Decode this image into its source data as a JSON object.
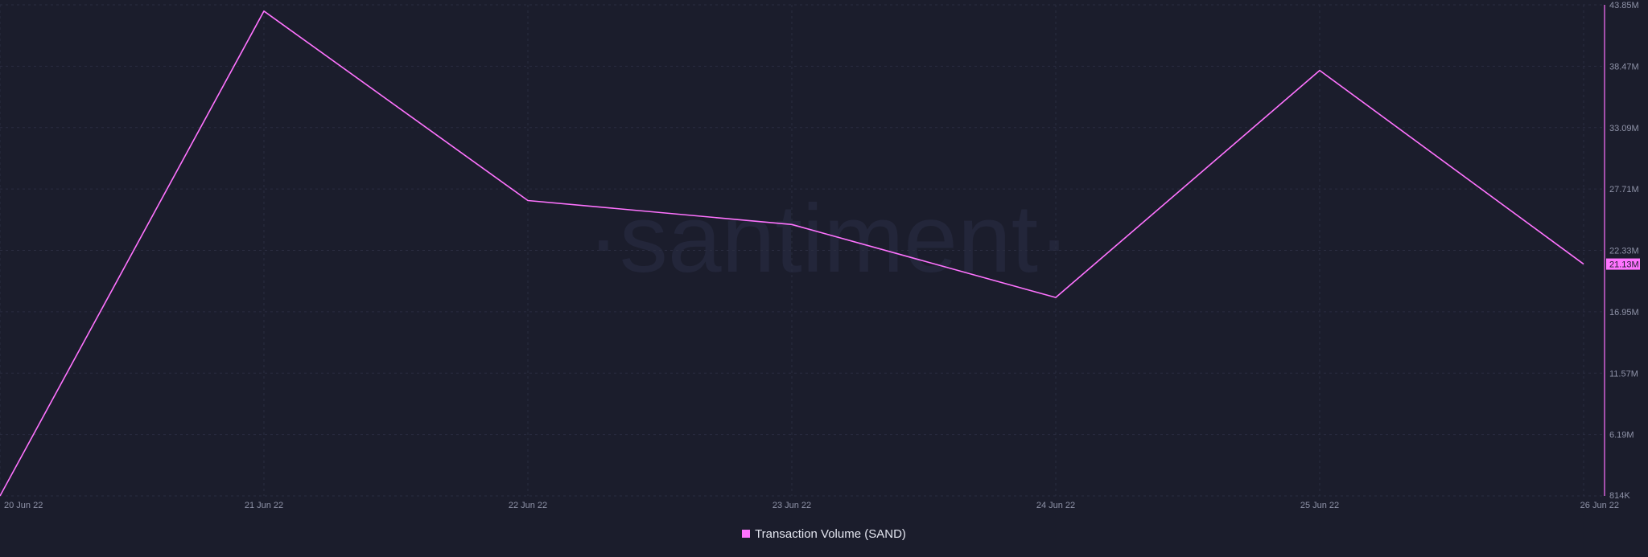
{
  "watermark": "·santiment·",
  "colors": {
    "background": "#1b1d2c",
    "line": "#ff73ff",
    "grid": "#2a2d40",
    "axis_text": "#8f93a8"
  },
  "chart_data": {
    "type": "line",
    "x": [
      "20 Jun 22",
      "21 Jun 22",
      "22 Jun 22",
      "23 Jun 22",
      "24 Jun 22",
      "25 Jun 22",
      "26 Jun 22"
    ],
    "series": [
      {
        "name": "Transaction Volume (SAND)",
        "values": [
          0.814,
          43.3,
          26.7,
          24.6,
          18.2,
          38.1,
          21.13
        ]
      }
    ],
    "y_axis": {
      "position": "right",
      "unit": "M",
      "ticks": [
        "43.85M",
        "38.47M",
        "33.09M",
        "27.71M",
        "22.33M",
        "16.95M",
        "11.57M",
        "6.19M",
        "814K"
      ],
      "ylim": [
        0.814,
        43.85
      ]
    },
    "last_value_label": "21.13M",
    "grid": true,
    "legend": {
      "placement": "bottom-center",
      "label": "Transaction Volume (SAND)"
    }
  }
}
